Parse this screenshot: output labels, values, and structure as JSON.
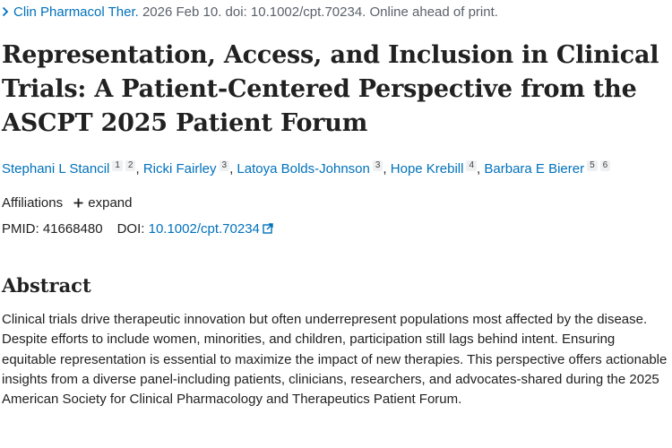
{
  "citation": {
    "journal": "Clin Pharmacol Ther.",
    "details": " 2026 Feb 10. doi: 10.1002/cpt.70234. Online ahead of print."
  },
  "title": "Representation, Access, and Inclusion in Clinical Trials: A Patient-Centered Perspective from the ASCPT 2025 Patient Forum",
  "authors": [
    {
      "name": "Stephani L Stancil",
      "affs": [
        "1",
        "2"
      ]
    },
    {
      "name": "Ricki Fairley",
      "affs": [
        "3"
      ]
    },
    {
      "name": "Latoya Bolds-Johnson",
      "affs": [
        "3"
      ]
    },
    {
      "name": "Hope Krebill",
      "affs": [
        "4"
      ]
    },
    {
      "name": "Barbara E Bierer",
      "affs": [
        "5",
        "6"
      ]
    }
  ],
  "affiliations": {
    "label": "Affiliations",
    "toggle": "expand"
  },
  "ids": {
    "pmid_label": "PMID:",
    "pmid": "41668480",
    "doi_label": "DOI:",
    "doi": "10.1002/cpt.70234"
  },
  "abstract": {
    "heading": "Abstract",
    "text": "Clinical trials drive therapeutic innovation but often underrepresent populations most affected by the disease. Despite efforts to include women, minorities, and children, participation still lags behind intent. Ensuring equitable representation is essential to maximize the impact of new therapies. This perspective offers actionable insights from a diverse panel-including patients, clinicians, researchers, and advocates-shared during the 2025 American Society for Clinical Pharmacology and Therapeutics Patient Forum."
  },
  "icons": {
    "journal": "chevron-right-icon",
    "expand": "plus-icon",
    "doi": "external-link-icon"
  },
  "colors": {
    "link": "#0071bc",
    "text": "#212121"
  }
}
